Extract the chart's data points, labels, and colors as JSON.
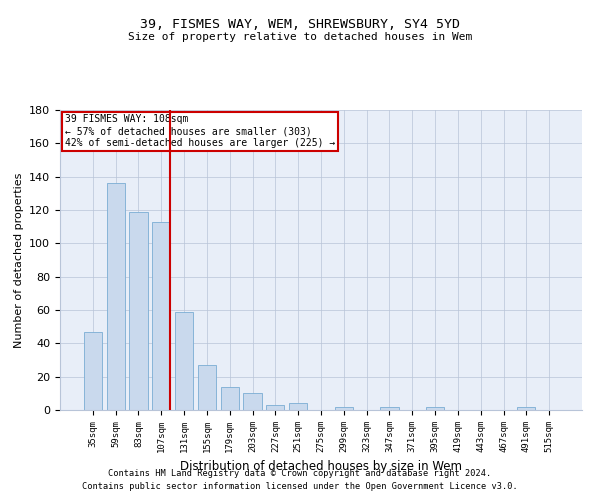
{
  "title": "39, FISMES WAY, WEM, SHREWSBURY, SY4 5YD",
  "subtitle": "Size of property relative to detached houses in Wem",
  "xlabel": "Distribution of detached houses by size in Wem",
  "ylabel": "Number of detached properties",
  "bar_color": "#c9d9ed",
  "bar_edge_color": "#7aadd4",
  "background_color": "#e8eef8",
  "categories": [
    "35sqm",
    "59sqm",
    "83sqm",
    "107sqm",
    "131sqm",
    "155sqm",
    "179sqm",
    "203sqm",
    "227sqm",
    "251sqm",
    "275sqm",
    "299sqm",
    "323sqm",
    "347sqm",
    "371sqm",
    "395sqm",
    "419sqm",
    "443sqm",
    "467sqm",
    "491sqm",
    "515sqm"
  ],
  "values": [
    47,
    136,
    119,
    113,
    59,
    27,
    14,
    10,
    3,
    4,
    0,
    2,
    0,
    2,
    0,
    2,
    0,
    0,
    0,
    2,
    0
  ],
  "vline_index": 3,
  "vline_color": "#cc0000",
  "annotation_line1": "39 FISMES WAY: 108sqm",
  "annotation_line2": "← 57% of detached houses are smaller (303)",
  "annotation_line3": "42% of semi-detached houses are larger (225) →",
  "annotation_box_color": "#ffffff",
  "annotation_box_edge": "#cc0000",
  "ylim": [
    0,
    180
  ],
  "yticks": [
    0,
    20,
    40,
    60,
    80,
    100,
    120,
    140,
    160,
    180
  ],
  "footer_line1": "Contains HM Land Registry data © Crown copyright and database right 2024.",
  "footer_line2": "Contains public sector information licensed under the Open Government Licence v3.0."
}
